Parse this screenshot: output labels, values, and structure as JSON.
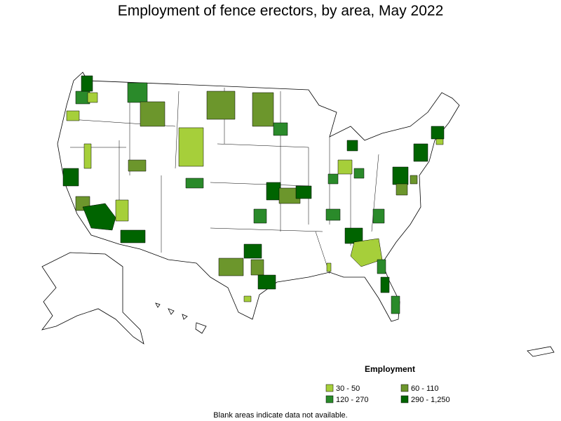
{
  "title": "Employment of fence erectors, by area, May 2022",
  "legend": {
    "title": "Employment",
    "items": [
      {
        "label": "30 - 50",
        "color": "#a6cf3a"
      },
      {
        "label": "60 - 110",
        "color": "#6c962c"
      },
      {
        "label": "120 - 270",
        "color": "#2a8a2a"
      },
      {
        "label": "290 - 1,250",
        "color": "#006400"
      }
    ]
  },
  "footnote": "Blank areas indicate data not available."
}
